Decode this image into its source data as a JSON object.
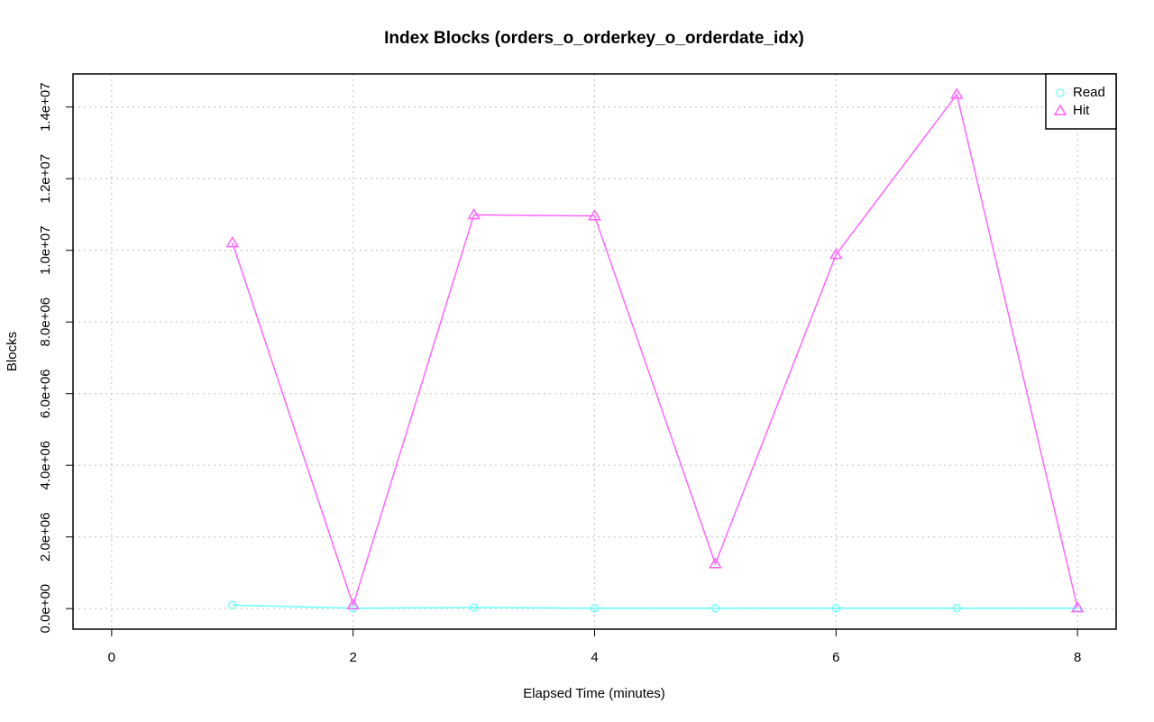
{
  "chart_data": {
    "type": "line",
    "title": "Index Blocks (orders_o_orderkey_o_orderdate_idx)",
    "x_label": "Elapsed Time (minutes)",
    "y_label": "Blocks",
    "x": [
      1,
      2,
      3,
      4,
      5,
      6,
      7,
      8
    ],
    "series": [
      {
        "name": "Read",
        "color": "#66ffff",
        "marker": "circle",
        "values": [
          100000,
          10000,
          30000,
          10000,
          10000,
          10000,
          10000,
          10000
        ]
      },
      {
        "name": "Hit",
        "color": "#ff66ff",
        "marker": "triangle",
        "values": [
          10210000,
          100000,
          10990000,
          10960000,
          1250000,
          9880000,
          14350000,
          20000
        ]
      }
    ],
    "xlim": [
      -0.32,
      8.32
    ],
    "xticks": [
      0,
      2,
      4,
      6,
      8
    ],
    "ylim": [
      -574000,
      14924000
    ],
    "yticks": [
      {
        "value": 0,
        "label": "0.0e+00"
      },
      {
        "value": 2000000,
        "label": "2.0e+06"
      },
      {
        "value": 4000000,
        "label": "4.0e+06"
      },
      {
        "value": 6000000,
        "label": "6.0e+06"
      },
      {
        "value": 8000000,
        "label": "8.0e+06"
      },
      {
        "value": 10000000,
        "label": "1.0e+07"
      },
      {
        "value": 12000000,
        "label": "1.2e+07"
      },
      {
        "value": 14000000,
        "label": "1.4e+07"
      }
    ],
    "grid": true,
    "legend_position": "top-right"
  }
}
